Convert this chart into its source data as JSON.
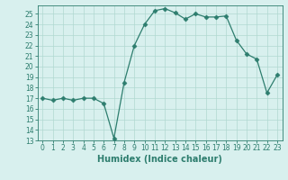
{
  "x": [
    0,
    1,
    2,
    3,
    4,
    5,
    6,
    7,
    8,
    9,
    10,
    11,
    12,
    13,
    14,
    15,
    16,
    17,
    18,
    19,
    20,
    21,
    22,
    23
  ],
  "y": [
    17,
    16.8,
    17,
    16.8,
    17,
    17,
    16.5,
    13.2,
    18.5,
    22,
    24,
    25.3,
    25.5,
    25.1,
    24.5,
    25,
    24.7,
    24.7,
    24.8,
    22.5,
    21.2,
    20.7,
    17.5,
    19.2
  ],
  "line_color": "#2d7d6e",
  "marker": "D",
  "marker_size": 2.5,
  "bg_color": "#d8f0ee",
  "grid_color": "#b0d8d0",
  "xlabel": "Humidex (Indice chaleur)",
  "xlim": [
    -0.5,
    23.5
  ],
  "ylim": [
    13,
    25.8
  ],
  "yticks": [
    13,
    14,
    15,
    16,
    17,
    18,
    19,
    20,
    21,
    22,
    23,
    24,
    25
  ],
  "xticks": [
    0,
    1,
    2,
    3,
    4,
    5,
    6,
    7,
    8,
    9,
    10,
    11,
    12,
    13,
    14,
    15,
    16,
    17,
    18,
    19,
    20,
    21,
    22,
    23
  ],
  "tick_color": "#2d7d6e",
  "label_fontsize": 5.5,
  "xlabel_fontsize": 7
}
